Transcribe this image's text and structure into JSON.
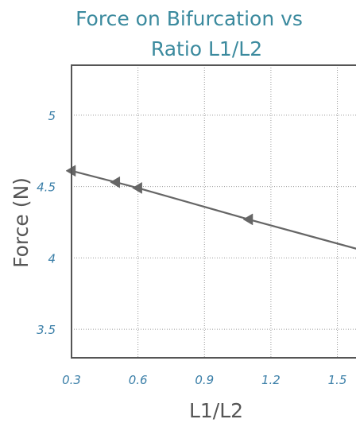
{
  "chart_data": {
    "type": "line",
    "title_lines": [
      "Force on Bifurcation vs",
      "Ratio L1/L2"
    ],
    "xlabel": "L1/L2",
    "ylabel": "Force (N)",
    "xlim": [
      0.3,
      1.62
    ],
    "ylim": [
      3.3,
      5.35
    ],
    "x_ticks": [
      "0.3",
      "0.6",
      "0.9",
      "1.2",
      "1.5"
    ],
    "y_ticks": [
      "3.5",
      "4",
      "4.5",
      "5"
    ],
    "grid": true,
    "series": [
      {
        "marker": "left-triangle",
        "color": "#666666",
        "points": [
          {
            "x": 0.3,
            "y": 4.61
          },
          {
            "x": 0.5,
            "y": 4.53
          },
          {
            "x": 0.6,
            "y": 4.49
          },
          {
            "x": 1.1,
            "y": 4.27
          },
          {
            "x": 1.62,
            "y": 4.05
          }
        ]
      }
    ]
  }
}
